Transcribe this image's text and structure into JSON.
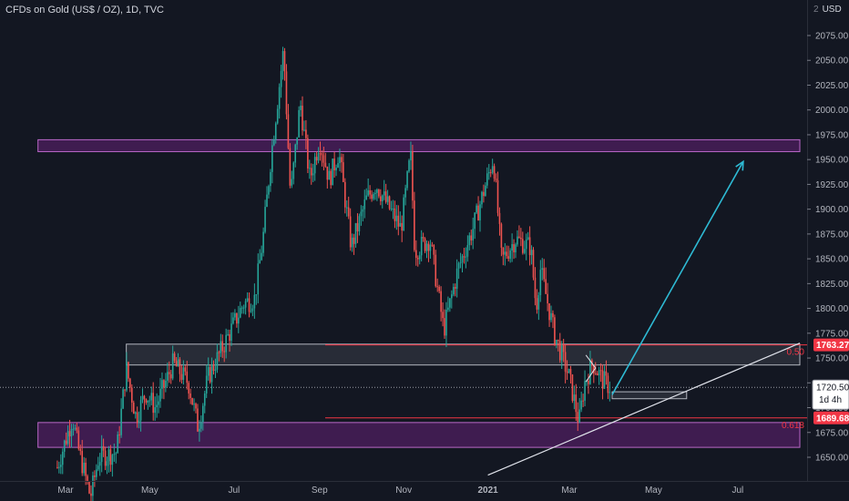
{
  "header": {
    "symbol_title": "CFDs on Gold (US$ / OZ), 1D, TVC",
    "currency": "USD",
    "currency_prefix": "2"
  },
  "colors": {
    "background": "#131722",
    "up": "#26a69a",
    "down": "#ef5350",
    "axis_text": "#b2b5be",
    "zone_purple": "#9c27b0",
    "zone_gray": "#787b86",
    "arrow": "#2ebad4",
    "fib_line": "#f23645",
    "trendline": "#e0e3eb",
    "price_label_bg": "#ffffff"
  },
  "chart_data": {
    "type": "candlestick",
    "title": "CFDs on Gold (US$ / OZ), 1D, TVC",
    "ylim": [
      1625,
      2100
    ],
    "y_ticks": [
      1650,
      1675,
      1700,
      1725,
      1750,
      1775,
      1800,
      1825,
      1850,
      1875,
      1900,
      1925,
      1950,
      1975,
      2000,
      2025,
      2050,
      2075
    ],
    "y_tick_labels": [
      "1650.00",
      "1675.00",
      "1700.00",
      "1725.00",
      "1750.00",
      "1775.00",
      "1800.00",
      "1825.00",
      "1850.00",
      "1875.00",
      "1900.00",
      "1925.00",
      "1950.00",
      "1975.00",
      "2000.00",
      "2025.00",
      "2050.00",
      "2075.00"
    ],
    "x_ticks": [
      {
        "label": "Mar",
        "date": "2020-03-01"
      },
      {
        "label": "May",
        "date": "2020-05-01"
      },
      {
        "label": "Jul",
        "date": "2020-07-01"
      },
      {
        "label": "Sep",
        "date": "2020-09-01"
      },
      {
        "label": "Nov",
        "date": "2020-11-01"
      },
      {
        "label": "2021",
        "date": "2021-01-01"
      },
      {
        "label": "Mar",
        "date": "2021-03-01"
      },
      {
        "label": "May",
        "date": "2021-05-01"
      },
      {
        "label": "Jul",
        "date": "2021-07-01"
      }
    ],
    "series_path": [
      [
        "2020-02-24",
        1640
      ],
      [
        "2020-03-06",
        1690
      ],
      [
        "2020-03-10",
        1660
      ],
      [
        "2020-03-19",
        1610
      ],
      [
        "2020-03-25",
        1650
      ],
      [
        "2020-04-07",
        1655
      ],
      [
        "2020-04-14",
        1740
      ],
      [
        "2020-04-21",
        1690
      ],
      [
        "2020-04-28",
        1715
      ],
      [
        "2020-05-05",
        1700
      ],
      [
        "2020-05-18",
        1745
      ],
      [
        "2020-05-29",
        1725
      ],
      [
        "2020-06-05",
        1680
      ],
      [
        "2020-06-12",
        1730
      ],
      [
        "2020-06-26",
        1770
      ],
      [
        "2020-07-08",
        1805
      ],
      [
        "2020-07-16",
        1810
      ],
      [
        "2020-07-22",
        1870
      ],
      [
        "2020-07-28",
        1955
      ],
      [
        "2020-08-06",
        2062
      ],
      [
        "2020-08-11",
        1912
      ],
      [
        "2020-08-18",
        2008
      ],
      [
        "2020-08-25",
        1930
      ],
      [
        "2020-09-01",
        1970
      ],
      [
        "2020-09-08",
        1930
      ],
      [
        "2020-09-15",
        1958
      ],
      [
        "2020-09-24",
        1862
      ],
      [
        "2020-10-05",
        1910
      ],
      [
        "2020-10-12",
        1925
      ],
      [
        "2020-10-20",
        1905
      ],
      [
        "2020-10-30",
        1880
      ],
      [
        "2020-11-06",
        1955
      ],
      [
        "2020-11-09",
        1858
      ],
      [
        "2020-11-20",
        1870
      ],
      [
        "2020-11-30",
        1778
      ],
      [
        "2020-12-10",
        1838
      ],
      [
        "2020-12-21",
        1880
      ],
      [
        "2021-01-05",
        1952
      ],
      [
        "2021-01-11",
        1848
      ],
      [
        "2021-01-21",
        1870
      ],
      [
        "2021-02-01",
        1862
      ],
      [
        "2021-02-05",
        1800
      ],
      [
        "2021-02-08",
        1840
      ],
      [
        "2021-02-18",
        1775
      ],
      [
        "2021-03-01",
        1730
      ],
      [
        "2021-03-08",
        1685
      ],
      [
        "2021-03-12",
        1725
      ],
      [
        "2021-03-18",
        1745
      ],
      [
        "2021-03-25",
        1728
      ],
      [
        "2021-03-31",
        1720
      ]
    ],
    "last_price": 1720.5,
    "last_price_label": "1720.50",
    "countdown_label": "1d 4h",
    "horizontal_levels": [
      {
        "price": 1763.27,
        "label": "1763.27",
        "fib_text": "0.50"
      },
      {
        "price": 1689.68,
        "label": "1689.68",
        "fib_text": "0.618"
      }
    ],
    "zones": [
      {
        "kind": "purple",
        "top": 1970,
        "bottom": 1958,
        "from": "2020-02-10",
        "to": "2021-08-15"
      },
      {
        "kind": "gray",
        "top": 1764,
        "bottom": 1743,
        "from": "2020-04-14",
        "to": "2021-08-15"
      },
      {
        "kind": "purple",
        "top": 1685,
        "bottom": 1660,
        "from": "2020-02-10",
        "to": "2021-08-15"
      },
      {
        "kind": "gray",
        "top": 1716,
        "bottom": 1709,
        "from": "2021-04-01",
        "to": "2021-05-25"
      }
    ],
    "projection_arrow": {
      "from": [
        "2021-04-01",
        1713
      ],
      "to": [
        "2021-07-05",
        1948
      ]
    },
    "trendline": {
      "from": [
        "2021-01-01",
        1632
      ],
      "to": [
        "2021-08-15",
        1765
      ]
    },
    "triangle_pattern": [
      [
        "2021-03-13",
        1753
      ],
      [
        "2021-03-20",
        1740
      ],
      [
        "2021-03-13",
        1726
      ]
    ]
  }
}
